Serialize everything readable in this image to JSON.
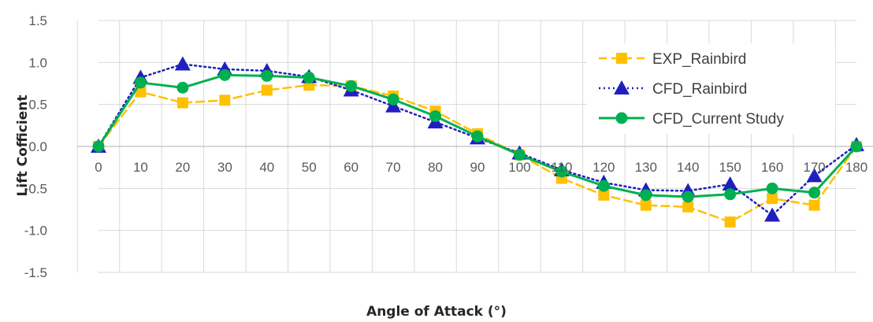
{
  "chart_data": {
    "type": "line",
    "xlabel": "Angle of Attack (°)",
    "ylabel": "Lift Cofficient",
    "x": [
      0,
      10,
      20,
      30,
      40,
      50,
      60,
      70,
      80,
      90,
      100,
      110,
      120,
      130,
      140,
      150,
      160,
      170,
      180
    ],
    "x_tick_labels": [
      "0",
      "10",
      "20",
      "30",
      "40",
      "50",
      "60",
      "70",
      "80",
      "90",
      "100",
      "110",
      "120",
      "130",
      "140",
      "150",
      "160",
      "170",
      "180"
    ],
    "y_tick_labels": [
      "1.5",
      "1.0",
      "0.5",
      "0.0",
      "-0.5",
      "-1.0",
      "-1.5"
    ],
    "y_ticks": [
      1.5,
      1.0,
      0.5,
      0.0,
      -0.5,
      -1.0,
      -1.5
    ],
    "ylim": [
      -1.5,
      1.5
    ],
    "xlim": [
      0,
      180
    ],
    "grid": true,
    "legend_position": "top-right",
    "series": [
      {
        "name": "EXP_Rainbird",
        "color": "#FFC000",
        "line_style": "dashed",
        "marker": "square",
        "values": [
          0.0,
          0.65,
          0.52,
          0.55,
          0.67,
          0.73,
          0.72,
          0.6,
          0.42,
          0.15,
          -0.1,
          -0.38,
          -0.58,
          -0.7,
          -0.72,
          -0.9,
          -0.62,
          -0.7,
          0.0
        ]
      },
      {
        "name": "CFD_Rainbird",
        "color": "#1F1FBF",
        "line_style": "dotted",
        "marker": "triangle",
        "values": [
          0.0,
          0.82,
          0.98,
          0.92,
          0.9,
          0.83,
          0.67,
          0.48,
          0.29,
          0.1,
          -0.08,
          -0.28,
          -0.43,
          -0.52,
          -0.53,
          -0.45,
          -0.82,
          -0.35,
          0.02
        ]
      },
      {
        "name": "CFD_Current Study",
        "color": "#00B050",
        "line_style": "solid",
        "marker": "circle",
        "values": [
          0.0,
          0.76,
          0.7,
          0.85,
          0.84,
          0.82,
          0.72,
          0.56,
          0.36,
          0.12,
          -0.1,
          -0.3,
          -0.47,
          -0.58,
          -0.6,
          -0.57,
          -0.5,
          -0.55,
          0.0
        ]
      }
    ]
  }
}
